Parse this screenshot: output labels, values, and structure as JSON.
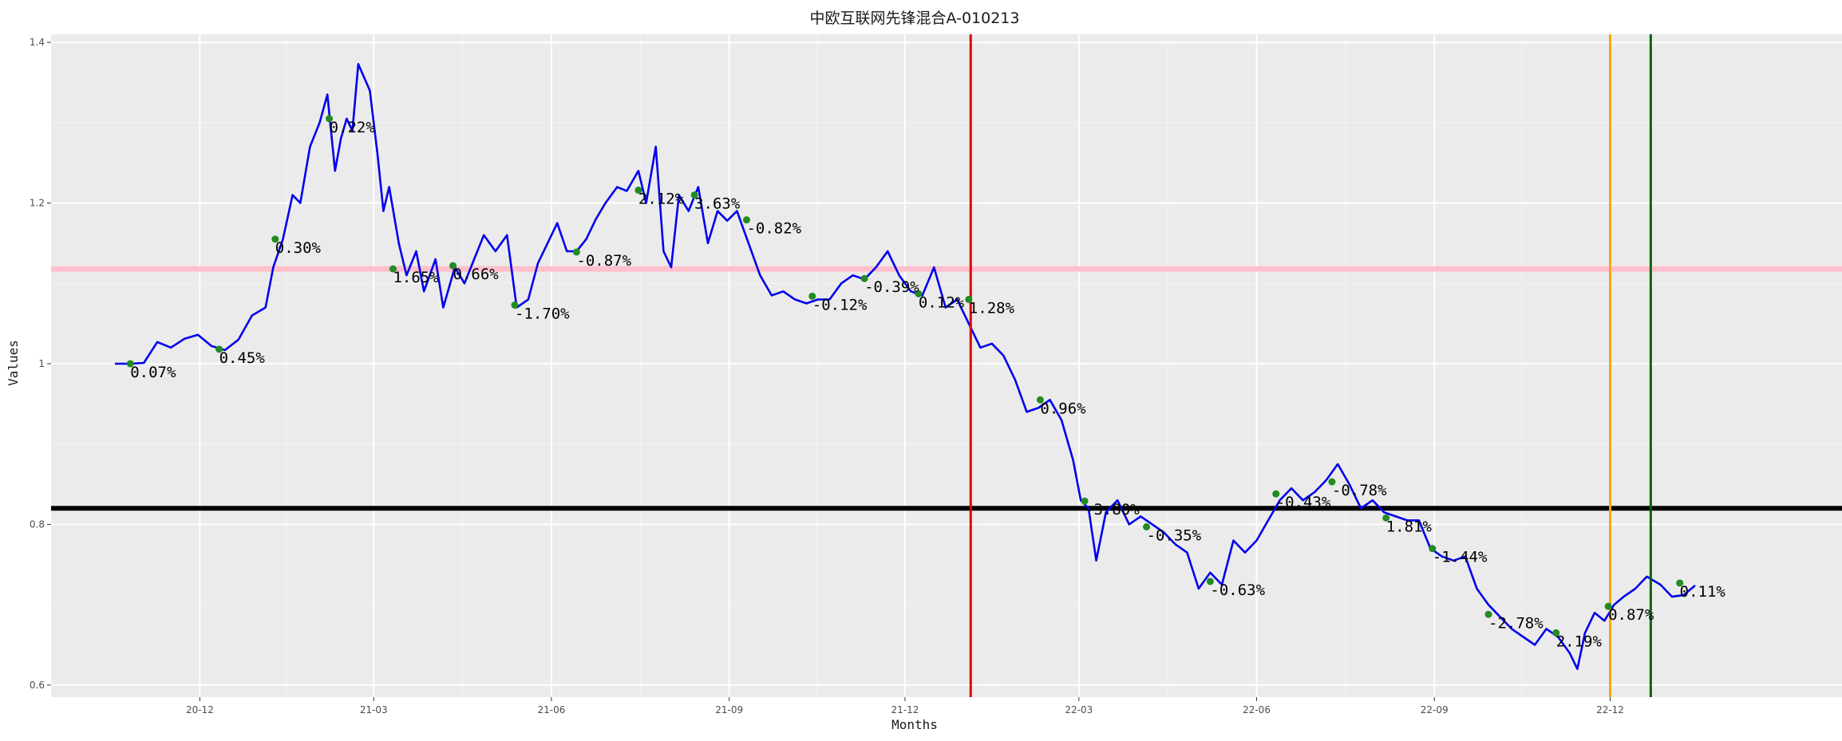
{
  "chart_data": {
    "type": "line",
    "title": "中欧互联网先锋混合A-010213",
    "xlabel": "Months",
    "ylabel": "Values",
    "xlim": [
      "2020-09-15",
      "2023-03-31"
    ],
    "ylim": [
      0.585,
      1.41
    ],
    "x_ticks": [
      {
        "date": "2020-12-01",
        "label": "20-12"
      },
      {
        "date": "2021-03-01",
        "label": "21-03"
      },
      {
        "date": "2021-06-01",
        "label": "21-06"
      },
      {
        "date": "2021-09-01",
        "label": "21-09"
      },
      {
        "date": "2021-12-01",
        "label": "21-12"
      },
      {
        "date": "2022-03-01",
        "label": "22-03"
      },
      {
        "date": "2022-06-01",
        "label": "22-06"
      },
      {
        "date": "2022-09-01",
        "label": "22-09"
      },
      {
        "date": "2022-12-01",
        "label": "22-12"
      }
    ],
    "y_ticks": [
      {
        "value": 0.6,
        "label": "0.6"
      },
      {
        "value": 0.8,
        "label": "0.8"
      },
      {
        "value": 1.0,
        "label": "1"
      },
      {
        "value": 1.2,
        "label": "1.2"
      },
      {
        "value": 1.4,
        "label": "1.4"
      }
    ],
    "series": [
      {
        "color": "#0000ee",
        "points": [
          [
            "2020-10-18",
            1.0
          ],
          [
            "2020-10-26",
            1.0
          ],
          [
            "2020-11-02",
            1.001
          ],
          [
            "2020-11-09",
            1.027
          ],
          [
            "2020-11-16",
            1.02
          ],
          [
            "2020-11-23",
            1.031
          ],
          [
            "2020-11-30",
            1.036
          ],
          [
            "2020-12-07",
            1.022
          ],
          [
            "2020-12-14",
            1.017
          ],
          [
            "2020-12-21",
            1.03
          ],
          [
            "2020-12-28",
            1.06
          ],
          [
            "2021-01-04",
            1.07
          ],
          [
            "2021-01-08",
            1.12
          ],
          [
            "2021-01-13",
            1.155
          ],
          [
            "2021-01-18",
            1.21
          ],
          [
            "2021-01-22",
            1.2
          ],
          [
            "2021-01-27",
            1.27
          ],
          [
            "2021-02-01",
            1.3
          ],
          [
            "2021-02-05",
            1.335
          ],
          [
            "2021-02-09",
            1.24
          ],
          [
            "2021-02-12",
            1.28
          ],
          [
            "2021-02-15",
            1.305
          ],
          [
            "2021-02-18",
            1.29
          ],
          [
            "2021-02-21",
            1.373
          ],
          [
            "2021-02-27",
            1.34
          ],
          [
            "2021-03-03",
            1.26
          ],
          [
            "2021-03-06",
            1.19
          ],
          [
            "2021-03-09",
            1.22
          ],
          [
            "2021-03-14",
            1.15
          ],
          [
            "2021-03-18",
            1.11
          ],
          [
            "2021-03-23",
            1.14
          ],
          [
            "2021-03-27",
            1.09
          ],
          [
            "2021-04-02",
            1.13
          ],
          [
            "2021-04-06",
            1.07
          ],
          [
            "2021-04-12",
            1.12
          ],
          [
            "2021-04-17",
            1.1
          ],
          [
            "2021-04-22",
            1.13
          ],
          [
            "2021-04-27",
            1.16
          ],
          [
            "2021-05-03",
            1.14
          ],
          [
            "2021-05-09",
            1.16
          ],
          [
            "2021-05-14",
            1.07
          ],
          [
            "2021-05-20",
            1.08
          ],
          [
            "2021-05-25",
            1.125
          ],
          [
            "2021-05-30",
            1.15
          ],
          [
            "2021-06-04",
            1.175
          ],
          [
            "2021-06-09",
            1.14
          ],
          [
            "2021-06-14",
            1.14
          ],
          [
            "2021-06-19",
            1.155
          ],
          [
            "2021-06-24",
            1.18
          ],
          [
            "2021-06-29",
            1.2
          ],
          [
            "2021-07-05",
            1.22
          ],
          [
            "2021-07-10",
            1.215
          ],
          [
            "2021-07-16",
            1.24
          ],
          [
            "2021-07-20",
            1.2
          ],
          [
            "2021-07-25",
            1.27
          ],
          [
            "2021-07-29",
            1.14
          ],
          [
            "2021-08-02",
            1.12
          ],
          [
            "2021-08-06",
            1.21
          ],
          [
            "2021-08-11",
            1.19
          ],
          [
            "2021-08-16",
            1.22
          ],
          [
            "2021-08-21",
            1.15
          ],
          [
            "2021-08-26",
            1.19
          ],
          [
            "2021-08-31",
            1.178
          ],
          [
            "2021-09-05",
            1.19
          ],
          [
            "2021-09-11",
            1.15
          ],
          [
            "2021-09-17",
            1.11
          ],
          [
            "2021-09-23",
            1.085
          ],
          [
            "2021-09-29",
            1.09
          ],
          [
            "2021-10-05",
            1.08
          ],
          [
            "2021-10-11",
            1.075
          ],
          [
            "2021-10-17",
            1.08
          ],
          [
            "2021-10-23",
            1.08
          ],
          [
            "2021-10-29",
            1.1
          ],
          [
            "2021-11-04",
            1.11
          ],
          [
            "2021-11-10",
            1.105
          ],
          [
            "2021-11-16",
            1.12
          ],
          [
            "2021-11-22",
            1.14
          ],
          [
            "2021-11-28",
            1.11
          ],
          [
            "2021-12-04",
            1.09
          ],
          [
            "2021-12-10",
            1.085
          ],
          [
            "2021-12-16",
            1.12
          ],
          [
            "2021-12-22",
            1.07
          ],
          [
            "2021-12-28",
            1.08
          ],
          [
            "2022-01-03",
            1.05
          ],
          [
            "2022-01-09",
            1.02
          ],
          [
            "2022-01-15",
            1.025
          ],
          [
            "2022-01-21",
            1.01
          ],
          [
            "2022-01-27",
            0.98
          ],
          [
            "2022-02-02",
            0.94
          ],
          [
            "2022-02-08",
            0.945
          ],
          [
            "2022-02-14",
            0.955
          ],
          [
            "2022-02-20",
            0.93
          ],
          [
            "2022-02-26",
            0.88
          ],
          [
            "2022-03-02",
            0.83
          ],
          [
            "2022-03-06",
            0.82
          ],
          [
            "2022-03-10",
            0.755
          ],
          [
            "2022-03-15",
            0.815
          ],
          [
            "2022-03-21",
            0.83
          ],
          [
            "2022-03-27",
            0.8
          ],
          [
            "2022-04-02",
            0.81
          ],
          [
            "2022-04-08",
            0.8
          ],
          [
            "2022-04-14",
            0.79
          ],
          [
            "2022-04-20",
            0.775
          ],
          [
            "2022-04-26",
            0.765
          ],
          [
            "2022-05-02",
            0.72
          ],
          [
            "2022-05-08",
            0.74
          ],
          [
            "2022-05-14",
            0.725
          ],
          [
            "2022-05-20",
            0.78
          ],
          [
            "2022-05-26",
            0.765
          ],
          [
            "2022-06-01",
            0.78
          ],
          [
            "2022-06-07",
            0.805
          ],
          [
            "2022-06-13",
            0.83
          ],
          [
            "2022-06-19",
            0.845
          ],
          [
            "2022-06-25",
            0.83
          ],
          [
            "2022-07-01",
            0.84
          ],
          [
            "2022-07-07",
            0.855
          ],
          [
            "2022-07-13",
            0.875
          ],
          [
            "2022-07-19",
            0.85
          ],
          [
            "2022-07-25",
            0.82
          ],
          [
            "2022-07-31",
            0.83
          ],
          [
            "2022-08-06",
            0.815
          ],
          [
            "2022-08-12",
            0.81
          ],
          [
            "2022-08-18",
            0.805
          ],
          [
            "2022-08-24",
            0.805
          ],
          [
            "2022-08-30",
            0.77
          ],
          [
            "2022-09-05",
            0.76
          ],
          [
            "2022-09-11",
            0.755
          ],
          [
            "2022-09-17",
            0.76
          ],
          [
            "2022-09-23",
            0.72
          ],
          [
            "2022-09-29",
            0.7
          ],
          [
            "2022-10-05",
            0.685
          ],
          [
            "2022-10-11",
            0.67
          ],
          [
            "2022-10-17",
            0.66
          ],
          [
            "2022-10-23",
            0.65
          ],
          [
            "2022-10-29",
            0.67
          ],
          [
            "2022-11-04",
            0.66
          ],
          [
            "2022-11-10",
            0.64
          ],
          [
            "2022-11-14",
            0.62
          ],
          [
            "2022-11-18",
            0.665
          ],
          [
            "2022-11-23",
            0.69
          ],
          [
            "2022-11-28",
            0.68
          ],
          [
            "2022-12-03",
            0.7
          ],
          [
            "2022-12-08",
            0.71
          ],
          [
            "2022-12-14",
            0.72
          ],
          [
            "2022-12-20",
            0.735
          ],
          [
            "2022-12-27",
            0.725
          ],
          [
            "2023-01-02",
            0.71
          ],
          [
            "2023-01-08",
            0.712
          ],
          [
            "2023-01-14",
            0.724
          ]
        ]
      }
    ],
    "markers": {
      "color": "#228b22",
      "points": [
        {
          "x": "2020-10-26",
          "y": 1.0,
          "label": "0.07%"
        },
        {
          "x": "2020-12-11",
          "y": 1.018,
          "label": "0.45%"
        },
        {
          "x": "2021-01-09",
          "y": 1.155,
          "label": "0.30%"
        },
        {
          "x": "2021-02-06",
          "y": 1.305,
          "label": "0.22%"
        },
        {
          "x": "2021-03-11",
          "y": 1.118,
          "label": "1.65%"
        },
        {
          "x": "2021-04-11",
          "y": 1.122,
          "label": "0.66%"
        },
        {
          "x": "2021-05-13",
          "y": 1.073,
          "label": "-1.70%"
        },
        {
          "x": "2021-06-14",
          "y": 1.139,
          "label": "-0.87%"
        },
        {
          "x": "2021-07-16",
          "y": 1.216,
          "label": "2.12%"
        },
        {
          "x": "2021-08-14",
          "y": 1.21,
          "label": "3.63%"
        },
        {
          "x": "2021-09-10",
          "y": 1.179,
          "label": "-0.82%"
        },
        {
          "x": "2021-10-14",
          "y": 1.084,
          "label": "-0.12%"
        },
        {
          "x": "2021-11-10",
          "y": 1.106,
          "label": "-0.39%"
        },
        {
          "x": "2021-12-08",
          "y": 1.087,
          "label": "0.12%"
        },
        {
          "x": "2022-01-03",
          "y": 1.08,
          "label": "1.28%"
        },
        {
          "x": "2022-02-09",
          "y": 0.955,
          "label": "0.96%"
        },
        {
          "x": "2022-03-04",
          "y": 0.829,
          "label": "-3.80%"
        },
        {
          "x": "2022-04-05",
          "y": 0.797,
          "label": "-0.35%"
        },
        {
          "x": "2022-05-08",
          "y": 0.729,
          "label": "-0.63%"
        },
        {
          "x": "2022-06-11",
          "y": 0.838,
          "label": "-0.43%"
        },
        {
          "x": "2022-07-10",
          "y": 0.853,
          "label": "-0.78%"
        },
        {
          "x": "2022-08-07",
          "y": 0.808,
          "label": "1.81%"
        },
        {
          "x": "2022-08-31",
          "y": 0.77,
          "label": "-1.44%"
        },
        {
          "x": "2022-09-29",
          "y": 0.688,
          "label": "-2.78%"
        },
        {
          "x": "2022-11-03",
          "y": 0.665,
          "label": "2.19%"
        },
        {
          "x": "2022-11-30",
          "y": 0.698,
          "label": "0.87%"
        },
        {
          "x": "2023-01-06",
          "y": 0.727,
          "label": "0.11%"
        }
      ]
    },
    "reference_lines": [
      {
        "orientation": "horizontal",
        "value": 1.118,
        "color": "#ffc0cb"
      },
      {
        "orientation": "horizontal",
        "value": 0.82,
        "color": "#000000"
      },
      {
        "orientation": "vertical",
        "date": "2022-01-04",
        "color": "#dd0000"
      },
      {
        "orientation": "vertical",
        "date": "2022-12-01",
        "color": "#ffa500"
      },
      {
        "orientation": "vertical",
        "date": "2022-12-22",
        "color": "#006400"
      }
    ],
    "grid": true,
    "legend": "none",
    "colors": {
      "panel_background": "#ebebeb",
      "grid_major": "#ffffff",
      "grid_minor": "#f4f4f4"
    }
  }
}
